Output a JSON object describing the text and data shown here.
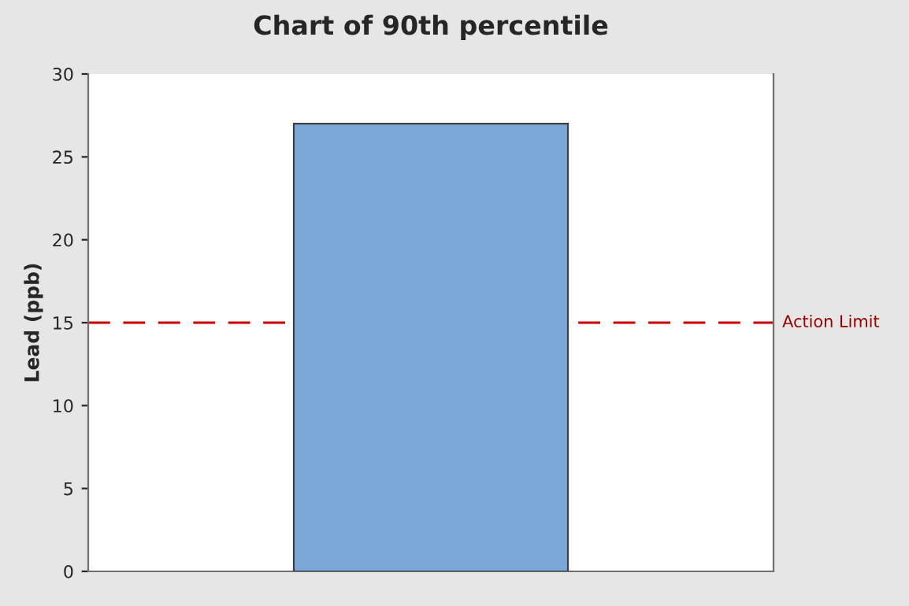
{
  "chart_data": {
    "type": "bar",
    "title": "Chart of 90th percentile",
    "ylabel": "Lead (ppb)",
    "categories": [
      null
    ],
    "values": [
      27
    ],
    "color": "#7ba7d9",
    "ylim": [
      0,
      30
    ],
    "yticks": [
      0,
      5,
      10,
      15,
      20,
      25,
      30
    ],
    "grid": false,
    "ref_lines": [
      {
        "axis": "y",
        "value": 15,
        "label": "Action Limit",
        "color": "#cc0000",
        "line_style": "dashed"
      }
    ]
  }
}
